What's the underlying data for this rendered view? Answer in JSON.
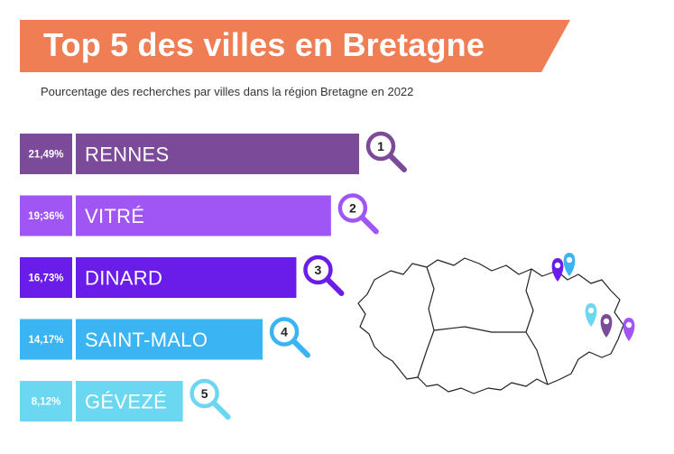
{
  "title": "Top 5 des villes en Bretagne",
  "subtitle": "Pourcentage des recherches par villes dans la région Bretagne en 2022",
  "colors": {
    "banner": "#F07E55",
    "bars": [
      "#7B4A99",
      "#A055F5",
      "#6A1CE8",
      "#3AB4F2",
      "#6BD7F0"
    ],
    "pins": [
      "#6A1CE8",
      "#3AB4F2",
      "#6BD7F0",
      "#7B4A99",
      "#A055F5"
    ]
  },
  "chart_data": {
    "type": "bar",
    "orientation": "horizontal",
    "categories": [
      "RENNES",
      "VITRÉ",
      "DINARD",
      "SAINT-MALO",
      "GÉVEZÉ"
    ],
    "values": [
      21.49,
      19.36,
      16.73,
      14.17,
      8.12
    ],
    "value_labels": [
      "21,49%",
      "19;36%",
      "16,73%",
      "14,17%",
      "8,12%"
    ],
    "ranks": [
      "1",
      "2",
      "3",
      "4",
      "5"
    ],
    "unit": "%",
    "xlim": [
      0,
      21.49
    ]
  },
  "map": {
    "region": "Bretagne",
    "icons": [
      "map-pin-icon",
      "magnifier-icon"
    ]
  }
}
